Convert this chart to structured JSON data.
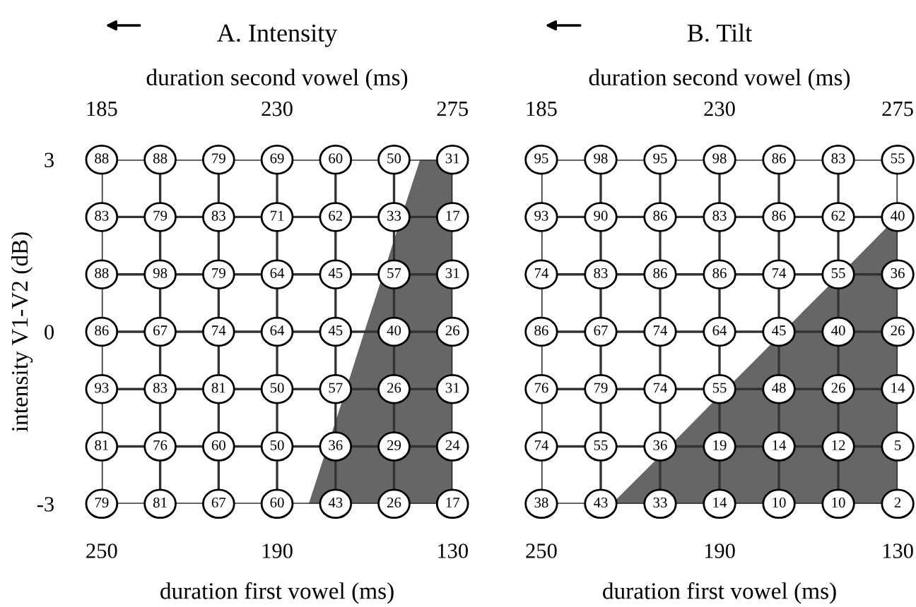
{
  "chart_data": [
    {
      "type": "heatmap",
      "title": "A. Intensity",
      "xlabel": "duration first vowel (ms)",
      "x2label": "duration second vowel (ms)",
      "ylabel": "intensity V1-V2 (dB)",
      "categories": [
        "250",
        null,
        null,
        "190",
        null,
        null,
        "130"
      ],
      "y_categories": [
        "3",
        null,
        null,
        "0",
        null,
        null,
        "-3"
      ],
      "x2lim": [
        185,
        275
      ],
      "x2ticks": [
        185,
        230,
        275
      ],
      "grid": true,
      "data_labels": true,
      "cells": [
        [
          88,
          88,
          79,
          69,
          60,
          50,
          31
        ],
        [
          83,
          79,
          83,
          71,
          62,
          33,
          17
        ],
        [
          88,
          98,
          79,
          64,
          45,
          57,
          31
        ],
        [
          86,
          67,
          74,
          64,
          45,
          40,
          26
        ],
        [
          93,
          83,
          81,
          50,
          57,
          26,
          31
        ],
        [
          81,
          76,
          60,
          50,
          36,
          29,
          24
        ],
        [
          79,
          81,
          67,
          60,
          43,
          26,
          17
        ]
      ]
    },
    {
      "type": "heatmap",
      "title": "B. Tilt",
      "xlabel": "duration first vowel (ms)",
      "x2label": "duration second vowel (ms)",
      "categories": [
        "250",
        null,
        null,
        "190",
        null,
        null,
        "130"
      ],
      "y_categories": [
        null,
        null,
        null,
        null,
        null,
        null,
        null
      ],
      "x2lim": [
        185,
        275
      ],
      "x2ticks": [
        185,
        230,
        275
      ],
      "grid": true,
      "tick_labels": "x",
      "data_labels": true,
      "cells": [
        [
          95,
          98,
          95,
          98,
          86,
          83,
          55
        ],
        [
          93,
          90,
          86,
          83,
          86,
          62,
          40
        ],
        [
          74,
          83,
          86,
          86,
          74,
          55,
          36
        ],
        [
          86,
          67,
          74,
          64,
          45,
          40,
          26
        ],
        [
          76,
          79,
          74,
          55,
          48,
          26,
          14
        ],
        [
          74,
          55,
          36,
          19,
          14,
          12,
          5
        ],
        [
          38,
          43,
          33,
          14,
          10,
          10,
          2
        ]
      ]
    }
  ]
}
